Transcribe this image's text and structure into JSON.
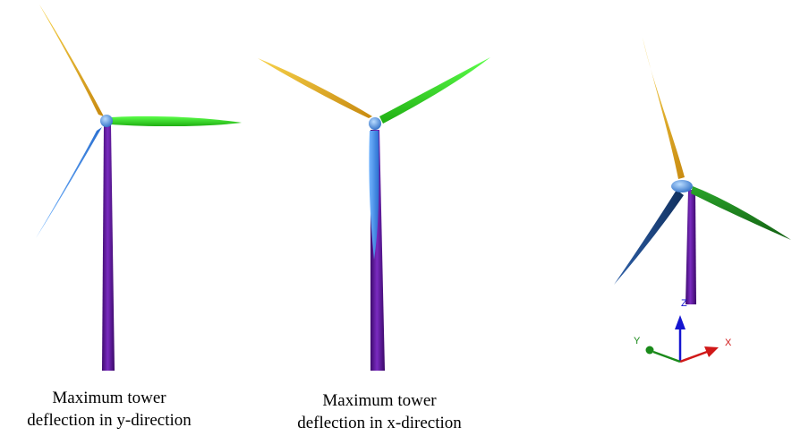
{
  "captions": {
    "left": [
      "Maximum tower",
      "deflection in y-direction"
    ],
    "middle": [
      "Maximum tower",
      "deflection in x-direction"
    ]
  },
  "axes": {
    "z": "Z",
    "y": "Y",
    "x": "X"
  },
  "colors": {
    "tower": "#5b1596",
    "blade_yellow": "#e8b321",
    "blade_green": "#2fe01e",
    "blade_blue": "#3b8fe8",
    "hub": "#4a8de0",
    "axis_x": "#d01818",
    "axis_y": "#1a8a1a",
    "axis_z": "#1515d0"
  }
}
